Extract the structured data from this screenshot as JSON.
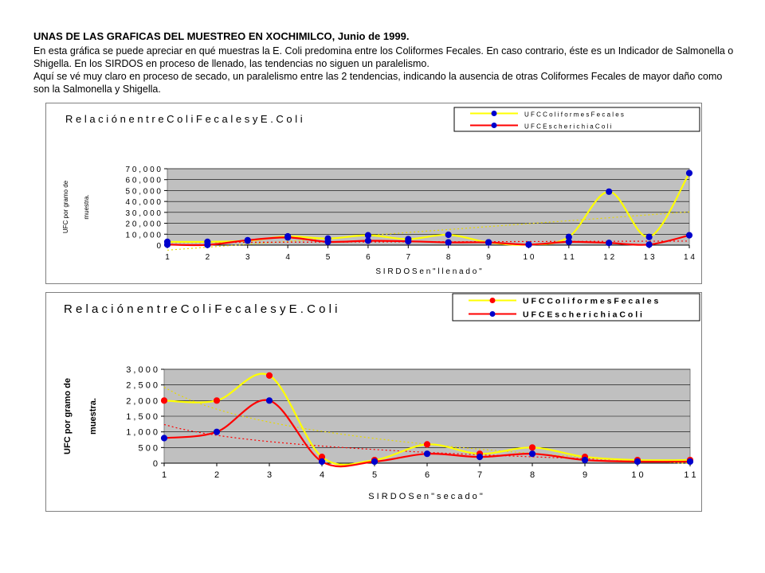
{
  "heading": {
    "title": "UNAS DE LAS GRAFICAS DEL MUESTREO EN XOCHIMILCO, Junio de 1999.",
    "p1": "En esta gráfica se puede apreciar en qué muestras la E. Coli predomina entre los Coliformes Fecales.  En caso contrario, éste es un Indicador de Salmonella o Shigella. En los SIRDOS en proceso de llenado, las tendencias no siguen un paralelismo.",
    "p2": "Aquí se vé muy claro en proceso de secado, un paralelismo entre las 2 tendencias, indicando la ausencia de otras Coliformes  Fecales de mayor daño como son la  Salmonella y Shigella."
  },
  "colors": {
    "plot_bg": "#c0c0c0",
    "coliformes": "#ffff00",
    "ecoli": "#ff0000",
    "marker_blue": "#0000cc",
    "marker_red": "#ff0000",
    "grid": "#000000"
  },
  "chart_data": [
    {
      "type": "line",
      "title": "R e l a c i ó n   e n t r e   C o l i  F e c a l e s   y   E .  C o l i",
      "xlabel": "S I R D O S   e n   \" l l e n a d o \"",
      "ylabel": [
        "UFC por gramo de",
        "muestra."
      ],
      "categories": [
        "1",
        "2",
        "3",
        "4",
        "5",
        "6",
        "7",
        "8",
        "9",
        "1 0",
        "1 1",
        "1 2",
        "1 3",
        "1 4"
      ],
      "yticks": [
        "0",
        "1 0 , 0 0 0",
        "2 0 , 0 0 0",
        "3 0 , 0 0 0",
        "4 0 , 0 0 0",
        "5 0 , 0 0 0",
        "6 0 , 0 0 0",
        "7 0 , 0 0 0"
      ],
      "ylim": [
        0,
        70000
      ],
      "grid": true,
      "legend_position": "top-right",
      "series": [
        {
          "name": "U F C   C o l i f o r m e s   F e c a l e s",
          "color": "#ffff00",
          "marker": "#0000cc",
          "values": [
            3000,
            3000,
            4000,
            8000,
            6000,
            9000,
            5500,
            9500,
            2500,
            500,
            7500,
            49000,
            7500,
            66000
          ]
        },
        {
          "name": "U F C   E s c h e r i c h i a   C o l i",
          "color": "#ff0000",
          "marker": "#0000cc",
          "values": [
            500,
            200,
            4500,
            7000,
            3000,
            4000,
            3500,
            2500,
            2500,
            500,
            3000,
            2000,
            500,
            9000
          ]
        }
      ]
    },
    {
      "type": "line",
      "title": "R e l a c i ó n   e n t r e   C o l i  F e c a l e s   y   E .  C o l i",
      "xlabel": "S I R D O S   e n   \" s e c a d o \"",
      "ylabel": [
        "UFC por gramo de",
        "muestra."
      ],
      "categories": [
        "1",
        "2",
        "3",
        "4",
        "5",
        "6",
        "7",
        "8",
        "9",
        "1 0",
        "1 1"
      ],
      "yticks": [
        "0",
        "5 0 0",
        "1 , 0 0 0",
        "1 , 5 0 0",
        "2 , 0 0 0",
        "2 , 5 0 0",
        "3 , 0 0 0"
      ],
      "ylim": [
        0,
        3000
      ],
      "grid": true,
      "legend_position": "top-right",
      "series": [
        {
          "name": "U F C   C o l i f o r m e s   F e c a l e s",
          "color": "#ffff00",
          "marker": "#ff0000",
          "values": [
            2000,
            2000,
            2800,
            200,
            100,
            600,
            300,
            500,
            200,
            100,
            100
          ]
        },
        {
          "name": "U F C   E s c h e r i c h i a   C o l i",
          "color": "#ff0000",
          "marker": "#0000cc",
          "values": [
            800,
            1000,
            2000,
            50,
            50,
            300,
            200,
            300,
            100,
            50,
            50
          ]
        }
      ]
    }
  ]
}
